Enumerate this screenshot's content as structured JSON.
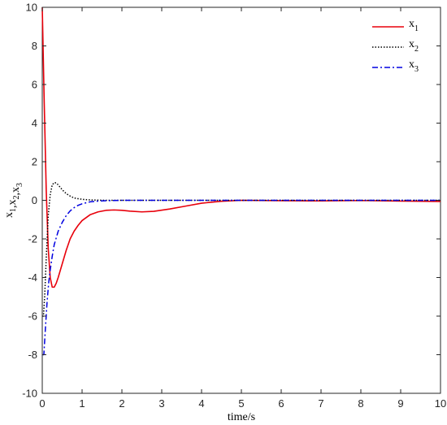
{
  "chart_data": {
    "type": "line",
    "title": "",
    "xlabel": "time/s",
    "ylabel_parts": [
      {
        "text": "x",
        "sub": "1"
      },
      {
        "text": ",x",
        "sub": "2"
      },
      {
        "text": ",x",
        "sub": "3"
      }
    ],
    "xlim": [
      0,
      10
    ],
    "ylim": [
      -10,
      10
    ],
    "xticks": [
      0,
      1,
      2,
      3,
      4,
      5,
      6,
      7,
      8,
      9,
      10
    ],
    "yticks": [
      -10,
      -8,
      -6,
      -4,
      -2,
      0,
      2,
      4,
      6,
      8,
      10
    ],
    "grid": false,
    "legend_position": "top-right",
    "series": [
      {
        "name": "x",
        "sub": "1",
        "color": "#e8000b",
        "style": "solid",
        "x": [
          0,
          0.05,
          0.1,
          0.15,
          0.2,
          0.25,
          0.3,
          0.35,
          0.4,
          0.5,
          0.6,
          0.7,
          0.8,
          0.9,
          1.0,
          1.2,
          1.4,
          1.6,
          1.8,
          2.0,
          2.2,
          2.5,
          2.8,
          3.2,
          3.6,
          4.0,
          4.5,
          5.0,
          6.0,
          7.0,
          8.0,
          9.0,
          10.0
        ],
        "y": [
          10,
          5.0,
          0.5,
          -2.5,
          -4.0,
          -4.5,
          -4.5,
          -4.3,
          -4.0,
          -3.3,
          -2.6,
          -2.0,
          -1.6,
          -1.3,
          -1.05,
          -0.75,
          -0.6,
          -0.52,
          -0.5,
          -0.52,
          -0.56,
          -0.6,
          -0.57,
          -0.45,
          -0.3,
          -0.15,
          -0.05,
          0,
          -0.02,
          -0.03,
          -0.01,
          -0.04,
          -0.06
        ]
      },
      {
        "name": "x",
        "sub": "2",
        "color": "#000000",
        "style": "dotted",
        "x": [
          0,
          0.03,
          0.06,
          0.1,
          0.15,
          0.2,
          0.25,
          0.3,
          0.35,
          0.4,
          0.5,
          0.6,
          0.7,
          0.8,
          1.0,
          1.2,
          1.4,
          1.6,
          2.0,
          3.0,
          5.0,
          7.0,
          10.0
        ],
        "y": [
          -6,
          -6,
          -5.0,
          -3.0,
          -0.8,
          0.3,
          0.8,
          0.92,
          0.9,
          0.8,
          0.55,
          0.35,
          0.22,
          0.12,
          0.05,
          0.02,
          0.01,
          0,
          0,
          0,
          0,
          0,
          0
        ]
      },
      {
        "name": "x",
        "sub": "3",
        "color": "#0000e0",
        "style": "dashdot",
        "x": [
          0,
          0.04,
          0.08,
          0.12,
          0.16,
          0.2,
          0.25,
          0.3,
          0.4,
          0.5,
          0.6,
          0.7,
          0.8,
          0.9,
          1.0,
          1.2,
          1.4,
          1.6,
          2.0,
          3.0,
          5.0,
          7.0,
          10.0
        ],
        "y": [
          -8,
          -8,
          -6.6,
          -5.3,
          -4.3,
          -3.6,
          -2.9,
          -2.3,
          -1.6,
          -1.15,
          -0.8,
          -0.55,
          -0.38,
          -0.26,
          -0.18,
          -0.08,
          -0.04,
          -0.02,
          0,
          0,
          0,
          0,
          0
        ]
      }
    ]
  }
}
